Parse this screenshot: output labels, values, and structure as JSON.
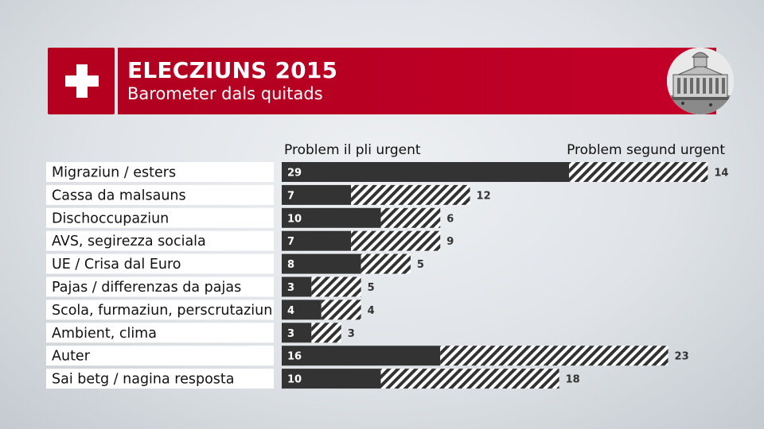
{
  "header": {
    "title": "ELECZIUNS 2015",
    "subtitle": "Barometer dals quitads"
  },
  "icons": {
    "logo": "swiss-cross-icon",
    "badge": "parliament-building-icon"
  },
  "colors": {
    "brand_red": "#b50020",
    "bar_dark": "#333333",
    "hatch": "#333333",
    "label_bg": "#ffffff"
  },
  "chart_data": {
    "type": "bar",
    "orientation": "horizontal",
    "stacked": true,
    "legend": [
      "Problem il pli urgent",
      "Problem segund urgent"
    ],
    "categories": [
      "Migraziun / esters",
      "Cassa da malsauns",
      "Dischoccupaziun",
      "AVS, segirezza sociala",
      "UE / Crisa dal Euro",
      "Pajas / differenzas da pajas",
      "Scola, furmaziun, perscrutaziun",
      "Ambient, clima",
      "Auter",
      "Sai betg / nagina resposta"
    ],
    "series": [
      {
        "name": "Problem il pli urgent",
        "values": [
          29,
          7,
          10,
          7,
          8,
          3,
          4,
          3,
          16,
          10
        ]
      },
      {
        "name": "Problem segund urgent",
        "values": [
          14,
          12,
          6,
          9,
          5,
          5,
          4,
          3,
          23,
          18
        ]
      }
    ],
    "xlim": [
      0,
      43
    ]
  }
}
